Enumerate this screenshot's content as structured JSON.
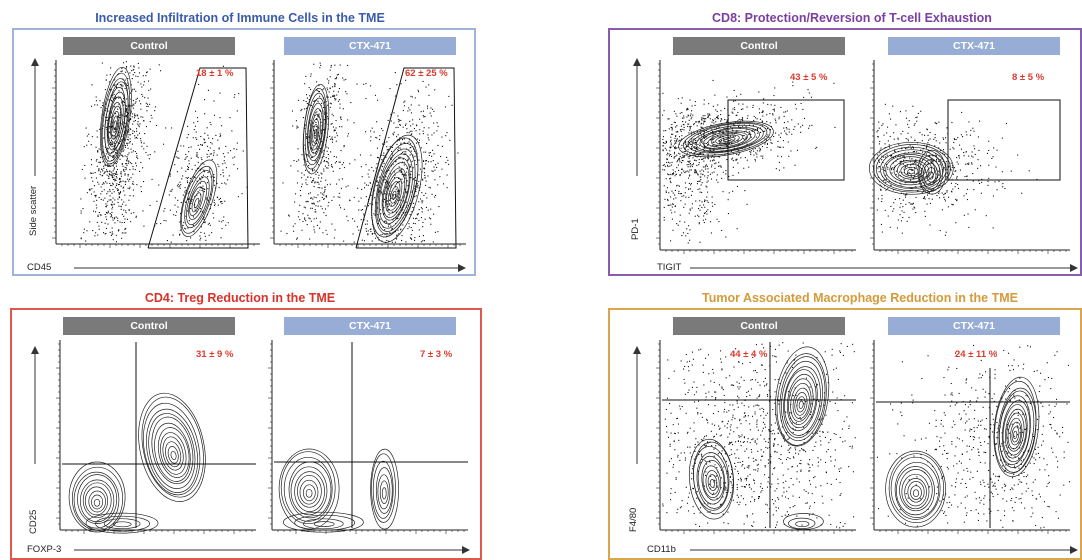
{
  "panels": [
    {
      "id": "immune",
      "title": "Increased Infiltration of Immune Cells in the TME",
      "title_color": "#3a5bab",
      "frame_color": "#9fb3d9",
      "control_label": "Control",
      "treatment_label": "CTX-471",
      "y_axis_label": "Side scatter",
      "x_axis_label": "CD45",
      "control_pct": "18 ± 1 %",
      "treatment_pct": "62 ± 25 %"
    },
    {
      "id": "cd8",
      "title": "CD8: Protection/Reversion of T-cell Exhaustion",
      "title_color": "#7a3fa0",
      "frame_color": "#8a5cae",
      "control_label": "Control",
      "treatment_label": "CTX-471",
      "y_axis_label": "PD-1",
      "x_axis_label": "TIGIT",
      "control_pct": "43 ± 5 %",
      "treatment_pct": "8 ± 5 %"
    },
    {
      "id": "cd4",
      "title": "CD4: Treg Reduction in the TME",
      "title_color": "#d9322a",
      "frame_color": "#e0574f",
      "control_label": "Control",
      "treatment_label": "CTX-471",
      "y_axis_label": "CD25",
      "x_axis_label": "FOXP-3",
      "control_pct": "31 ± 9 %",
      "treatment_pct": "7 ± 3 %"
    },
    {
      "id": "tam",
      "title": "Tumor Associated Macrophage Reduction in the TME",
      "title_color": "#d59a3a",
      "frame_color": "#d9a64e",
      "control_label": "Control",
      "treatment_label": "CTX-471",
      "y_axis_label": "F4/80",
      "x_axis_label": "CD11b",
      "control_pct": "44 ± 4 %",
      "treatment_pct": "24 ± 11 %"
    }
  ]
}
